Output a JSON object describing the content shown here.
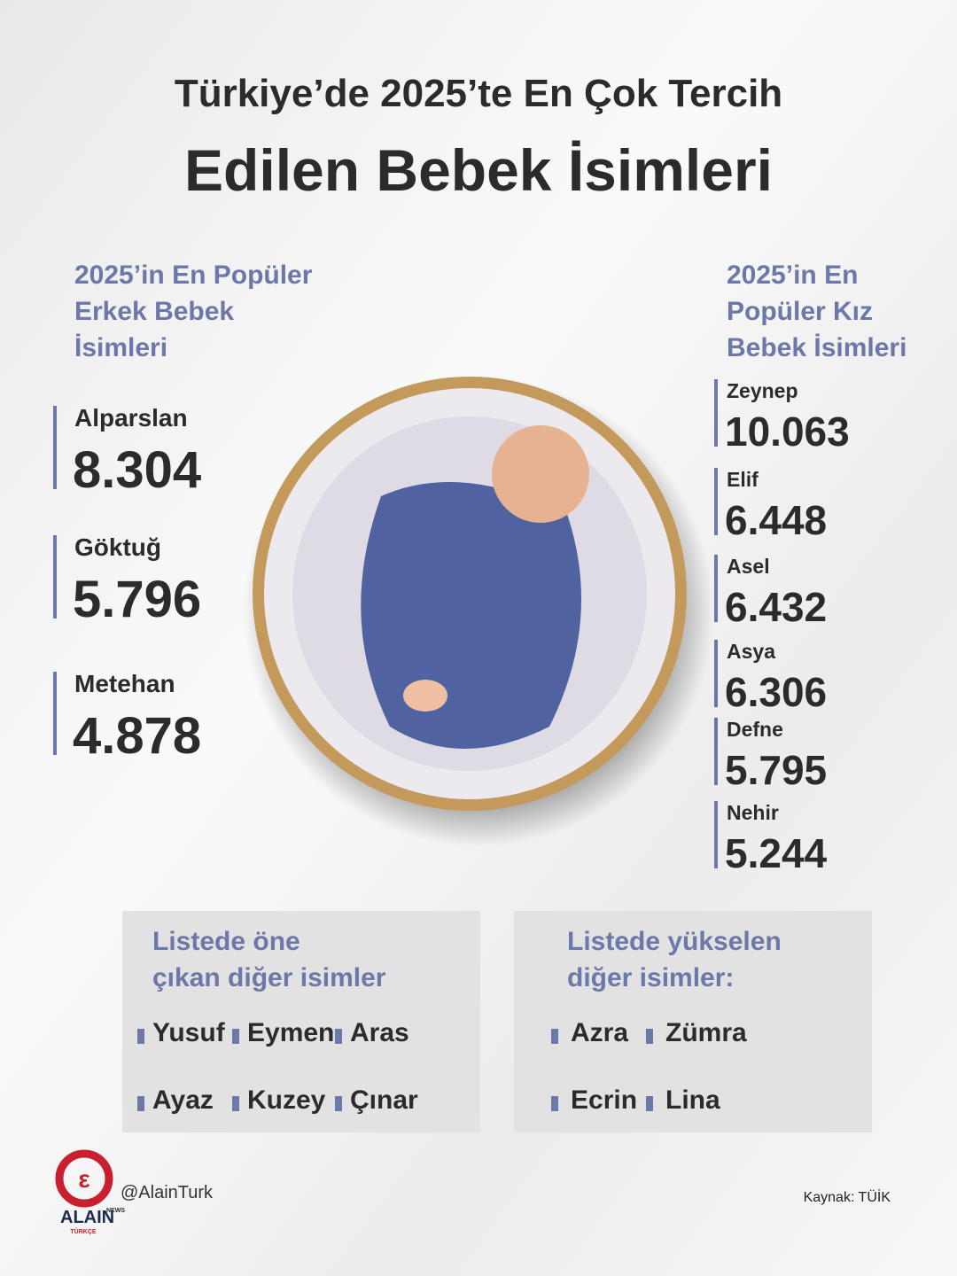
{
  "header": {
    "title_line1": "Türkiye’de 2025’te En Çok Tercih",
    "title_line2": "Edilen Bebek İsimleri"
  },
  "boys": {
    "heading": [
      "2025’in En Popüler",
      "Erkek Bebek",
      "İsimleri"
    ],
    "items": [
      {
        "name": "Alparslan",
        "count": "8.304"
      },
      {
        "name": "Göktuğ",
        "count": "5.796"
      },
      {
        "name": "Metehan",
        "count": "4.878"
      }
    ]
  },
  "girls": {
    "heading": [
      "2025’in En",
      "Popüler Kız",
      "Bebek İsimleri"
    ],
    "items": [
      {
        "name": "Zeynep",
        "count": "10.063"
      },
      {
        "name": "Elif",
        "count": "6.448"
      },
      {
        "name": "Asel",
        "count": "6.432"
      },
      {
        "name": "Asya",
        "count": "6.306"
      },
      {
        "name": "Defne",
        "count": "5.795"
      },
      {
        "name": "Nehir",
        "count": "5.244"
      }
    ]
  },
  "other_boxes": [
    {
      "heading": [
        "Listede öne",
        "çıkan diğer isimler"
      ],
      "names": [
        "Yusuf",
        "Eymen",
        "Aras",
        "Ayaz",
        "Kuzey",
        "Çınar"
      ]
    },
    {
      "heading": [
        "Listede yükselen",
        "diğer isimler:"
      ],
      "names": [
        "Azra",
        "Zümra",
        "Ecrin",
        "Lina"
      ]
    }
  ],
  "footer": {
    "logo": "ALAIN",
    "logo_top": "NEWS",
    "logo_bottom": "TÜRKÇE",
    "handle": "@AlainTurk",
    "source": "Kaynak: TÜİK"
  }
}
